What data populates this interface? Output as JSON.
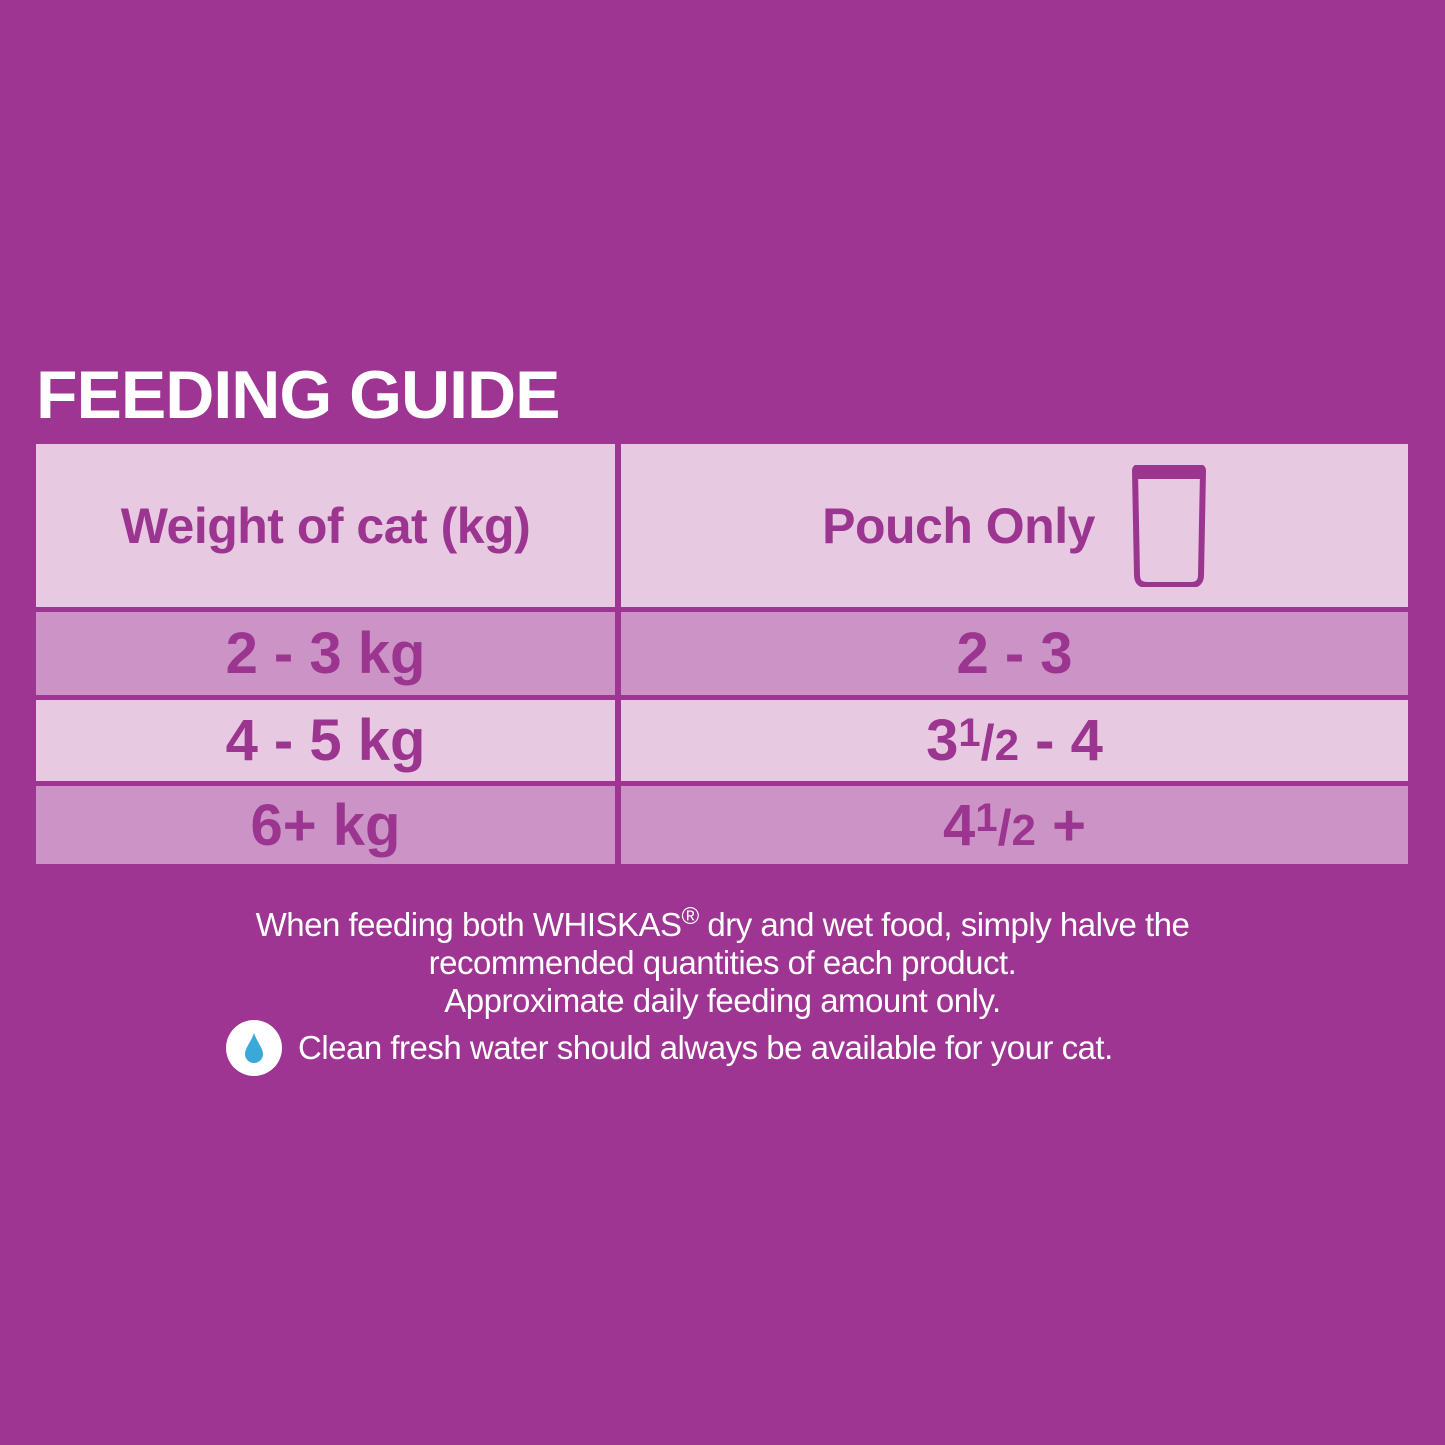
{
  "title": "FEEDING GUIDE",
  "table": {
    "headers": [
      "Weight of cat (kg)",
      "Pouch Only"
    ],
    "header_icon": "pouch-icon",
    "rows": [
      {
        "weight": "2 - 3 kg",
        "pouch": {
          "whole": "2 - 3",
          "num": "",
          "den": "",
          "suffix": ""
        }
      },
      {
        "weight": "4 - 5 kg",
        "pouch": {
          "whole": "3",
          "num": "1",
          "den": "2",
          "suffix": " - 4"
        }
      },
      {
        "weight": "6+ kg",
        "pouch": {
          "whole": "4",
          "num": "1",
          "den": "2",
          "suffix": " +"
        }
      }
    ]
  },
  "notes": {
    "line1_a": "When feeding both WHISKAS",
    "line1_reg": "®",
    "line1_b": " dry and wet food, simply halve the",
    "line2": "recommended quantities of each product.",
    "line3": "Approximate daily feeding amount only.",
    "water_icon": "water-drop-icon",
    "water": "Clean fresh water should always be available for your cat."
  },
  "colors": {
    "background": "#9e3592",
    "text": "#9b3590",
    "row_light": "#e7c9e2",
    "row_mid": "#cc94c6",
    "drop": "#3aa9d8"
  }
}
